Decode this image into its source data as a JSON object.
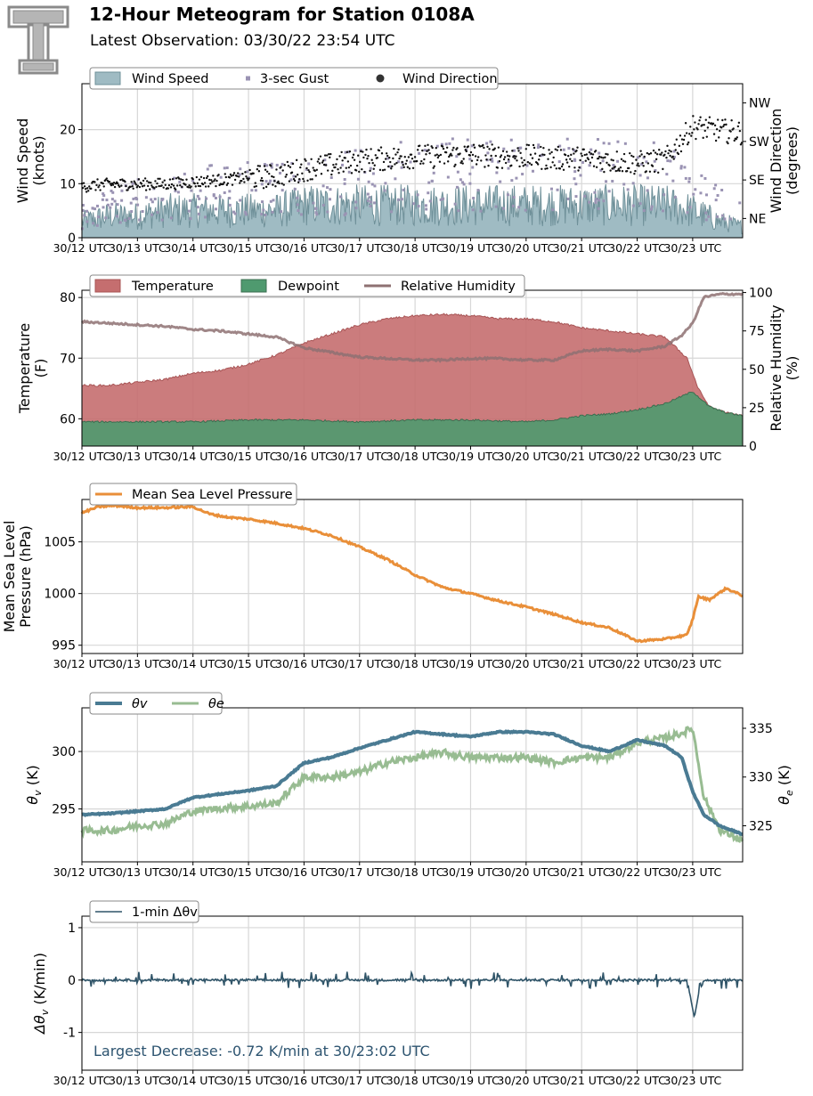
{
  "header": {
    "title": "12-Hour Meteogram for Station 0108A",
    "subtitle": "Latest Observation: 03/30/22 23:54 UTC"
  },
  "colors": {
    "wind_speed": "#9fbbc3",
    "wind_speed_line": "#6f9099",
    "gust": "#9a93b3",
    "wind_direction": "#111111",
    "temperature": "#c56e6f",
    "dewpoint": "#4f9a6f",
    "relative_humidity": "#8e7172",
    "pressure": "#e98f39",
    "theta_v": "#4a7b93",
    "theta_e": "#98bc92",
    "delta_theta_v": "#2f5468",
    "annotation": "#2d5470"
  },
  "chart_data": [
    {
      "id": "wind",
      "type": "area",
      "ylabel": "Wind Speed\n(knots)",
      "y2label": "Wind Direction\n(degrees)",
      "ylim": [
        0,
        28.5
      ],
      "yticks": [
        0,
        10,
        20
      ],
      "y2ticks": [
        "NE",
        "SE",
        "SW",
        "NW"
      ],
      "y2tick_degrees": [
        45,
        135,
        225,
        315
      ],
      "y2lim": [
        0,
        360
      ],
      "x_ticks": [
        "30/12 UTC",
        "30/13 UTC",
        "30/14 UTC",
        "30/15 UTC",
        "30/16 UTC",
        "30/17 UTC",
        "30/18 UTC",
        "30/19 UTC",
        "30/20 UTC",
        "30/21 UTC",
        "30/22 UTC",
        "30/23 UTC"
      ],
      "xlim_hours": [
        12,
        23.9
      ],
      "grid": true,
      "legend": {
        "placement": "top-left",
        "entries": [
          "Wind Speed",
          "3-sec Gust",
          "Wind Direction"
        ]
      },
      "series": [
        {
          "name": "Wind Speed",
          "kind": "area",
          "axis": "left",
          "x": [
            12,
            12.5,
            13,
            13.5,
            14,
            14.5,
            15,
            15.5,
            16,
            16.5,
            17,
            17.5,
            18,
            18.5,
            19,
            19.5,
            20,
            20.5,
            21,
            21.5,
            22,
            22.5,
            23,
            23.5,
            23.9
          ],
          "values": [
            3,
            4,
            4,
            5,
            5,
            5,
            5,
            5,
            6,
            6,
            6,
            6,
            6,
            6,
            6,
            6,
            6,
            6,
            6,
            6,
            6,
            6,
            5,
            3,
            2
          ]
        },
        {
          "name": "3-sec Gust",
          "kind": "points",
          "axis": "left",
          "x": [
            12,
            12.5,
            13,
            13.5,
            14,
            14.5,
            15,
            15.5,
            16,
            16.5,
            17,
            17.5,
            18,
            18.5,
            19,
            19.5,
            20,
            20.5,
            21,
            21.5,
            22,
            22.5,
            23,
            23.5,
            23.9
          ],
          "values": [
            4,
            6,
            7,
            8,
            8,
            9,
            9,
            9,
            10,
            10,
            11,
            11,
            12,
            12,
            12,
            12,
            12,
            12,
            12,
            12,
            12,
            12,
            9,
            6,
            4
          ]
        },
        {
          "name": "Wind Direction",
          "kind": "points",
          "axis": "right",
          "x": [
            12,
            12.5,
            13,
            13.5,
            14,
            14.5,
            15,
            15.5,
            16,
            16.5,
            17,
            17.5,
            18,
            18.5,
            19,
            19.5,
            20,
            20.5,
            21,
            21.5,
            22,
            22.5,
            23,
            23.5,
            23.9
          ],
          "values": [
            120,
            125,
            125,
            125,
            130,
            135,
            140,
            145,
            160,
            170,
            180,
            185,
            190,
            190,
            195,
            190,
            190,
            185,
            185,
            180,
            175,
            180,
            260,
            250,
            245
          ]
        }
      ]
    },
    {
      "id": "temperature",
      "type": "area",
      "ylabel": "Temperature\n(F)",
      "y2label": "Relative Humidity\n(%)",
      "ylim": [
        55.5,
        81.2
      ],
      "yticks": [
        60,
        70,
        80
      ],
      "y2lim": [
        0,
        101.5
      ],
      "y2ticks": [
        0,
        25,
        50,
        75,
        100
      ],
      "x_ticks": [
        "30/12 UTC",
        "30/13 UTC",
        "30/14 UTC",
        "30/15 UTC",
        "30/16 UTC",
        "30/17 UTC",
        "30/18 UTC",
        "30/19 UTC",
        "30/20 UTC",
        "30/21 UTC",
        "30/22 UTC",
        "30/23 UTC"
      ],
      "xlim_hours": [
        12,
        23.9
      ],
      "grid": true,
      "legend": {
        "placement": "top-left",
        "entries": [
          "Temperature",
          "Dewpoint",
          "Relative Humidity"
        ]
      },
      "series": [
        {
          "name": "Temperature",
          "kind": "area",
          "axis": "left",
          "x": [
            12,
            12.5,
            13,
            13.5,
            14,
            14.5,
            15,
            15.5,
            16,
            16.5,
            17,
            17.5,
            18,
            18.5,
            19,
            19.5,
            20,
            20.5,
            21,
            21.5,
            22,
            22.5,
            22.9,
            23.1,
            23.3,
            23.6,
            23.9
          ],
          "values": [
            65.5,
            65.5,
            66,
            66.5,
            67.5,
            68,
            69,
            70.5,
            72.5,
            74,
            75.5,
            76.5,
            77,
            77.2,
            77,
            76.5,
            76.5,
            76,
            75,
            74.5,
            74,
            73.5,
            70,
            65,
            62,
            61,
            60.5
          ]
        },
        {
          "name": "Dewpoint",
          "kind": "area",
          "axis": "left",
          "x": [
            12,
            13,
            14,
            15,
            16,
            17,
            18,
            19,
            20,
            20.5,
            21,
            21.5,
            22,
            22.5,
            23,
            23.3,
            23.6,
            23.9
          ],
          "values": [
            59.5,
            59.5,
            59.5,
            59.8,
            59.8,
            59.5,
            59.8,
            59.8,
            59.5,
            59.8,
            60.5,
            60.8,
            61.5,
            62.5,
            64.5,
            62,
            61,
            60.5
          ]
        },
        {
          "name": "Relative Humidity",
          "kind": "line",
          "axis": "right",
          "x": [
            12,
            12.5,
            13,
            13.5,
            14,
            14.5,
            15,
            15.5,
            16,
            16.5,
            17,
            17.5,
            18,
            18.5,
            19,
            19.5,
            20,
            20.5,
            21,
            21.5,
            22,
            22.5,
            22.8,
            23,
            23.2,
            23.5,
            23.9
          ],
          "values": [
            81,
            80,
            79,
            78,
            76,
            75,
            73,
            71,
            64,
            61,
            58,
            57,
            56,
            56,
            57,
            57,
            56,
            56,
            62,
            63,
            62,
            65,
            72,
            80,
            97,
            99,
            99
          ]
        }
      ]
    },
    {
      "id": "pressure",
      "type": "line",
      "ylabel": "Mean Sea Level\nPressure (hPa)",
      "ylim": [
        994.2,
        1009.1
      ],
      "yticks": [
        995,
        1000,
        1005
      ],
      "x_ticks": [
        "30/12 UTC",
        "30/13 UTC",
        "30/14 UTC",
        "30/15 UTC",
        "30/16 UTC",
        "30/17 UTC",
        "30/18 UTC",
        "30/19 UTC",
        "30/20 UTC",
        "30/21 UTC",
        "30/22 UTC",
        "30/23 UTC"
      ],
      "xlim_hours": [
        12,
        23.9
      ],
      "grid": true,
      "legend": {
        "placement": "top-left",
        "entries": [
          "Mean Sea Level Pressure"
        ]
      },
      "series": [
        {
          "name": "Mean Sea Level Pressure",
          "x": [
            12,
            12.3,
            12.6,
            13,
            13.5,
            14,
            14.3,
            14.6,
            15,
            15.5,
            16,
            16.5,
            17,
            17.5,
            18,
            18.5,
            19,
            19.5,
            20,
            20.5,
            21,
            21.5,
            22,
            22.5,
            22.9,
            23,
            23.1,
            23.3,
            23.6,
            23.9
          ],
          "values": [
            1007.8,
            1008.4,
            1008.5,
            1008.3,
            1008.3,
            1008.4,
            1007.7,
            1007.4,
            1007.2,
            1006.8,
            1006.3,
            1005.6,
            1004.5,
            1003.3,
            1001.8,
            1000.6,
            1000.0,
            999.3,
            998.7,
            998.0,
            997.2,
            996.7,
            995.4,
            995.6,
            996.0,
            997.5,
            999.7,
            999.4,
            1000.5,
            999.8
          ]
        }
      ]
    },
    {
      "id": "theta",
      "type": "line",
      "ylabel": "θv (K)",
      "y2label": "θe (K)",
      "ylim": [
        290.4,
        303.8
      ],
      "yticks": [
        295,
        300
      ],
      "y2lim": [
        321.3,
        337.1
      ],
      "y2ticks": [
        325,
        330,
        335
      ],
      "x_ticks": [
        "30/12 UTC",
        "30/13 UTC",
        "30/14 UTC",
        "30/15 UTC",
        "30/16 UTC",
        "30/17 UTC",
        "30/18 UTC",
        "30/19 UTC",
        "30/20 UTC",
        "30/21 UTC",
        "30/22 UTC",
        "30/23 UTC"
      ],
      "xlim_hours": [
        12,
        23.9
      ],
      "grid": true,
      "legend": {
        "placement": "top-left",
        "entries": [
          "θv",
          "θe"
        ]
      },
      "series": [
        {
          "name": "θv",
          "axis": "left",
          "x": [
            12,
            12.5,
            13,
            13.5,
            14,
            14.5,
            15,
            15.5,
            16,
            16.5,
            17,
            17.5,
            18,
            18.5,
            19,
            19.5,
            20,
            20.5,
            21,
            21.5,
            22,
            22.5,
            22.8,
            23,
            23.2,
            23.5,
            23.9
          ],
          "values": [
            294.5,
            294.6,
            294.8,
            295.0,
            296.0,
            296.3,
            296.6,
            297.0,
            299.0,
            299.5,
            300.3,
            301.0,
            301.7,
            301.5,
            301.3,
            301.7,
            301.7,
            301.5,
            300.5,
            300.0,
            301.0,
            300.5,
            299.5,
            296.5,
            294.5,
            293.5,
            292.8
          ]
        },
        {
          "name": "θe",
          "axis": "right",
          "x": [
            12,
            12.5,
            13,
            13.5,
            14,
            14.5,
            15,
            15.5,
            16,
            16.5,
            17,
            17.5,
            18,
            18.5,
            19,
            19.5,
            20,
            20.5,
            21,
            21.5,
            22,
            22.5,
            22.8,
            23,
            23.2,
            23.5,
            23.9
          ],
          "values": [
            324.5,
            324.5,
            325.0,
            325.2,
            326.5,
            326.8,
            327.0,
            327.3,
            330.0,
            330.0,
            330.5,
            331.5,
            332.0,
            332.5,
            332.0,
            332.0,
            332.0,
            331.5,
            332.0,
            332.0,
            333.5,
            334.0,
            334.5,
            335.0,
            328.0,
            324.5,
            323.5
          ]
        }
      ]
    },
    {
      "id": "delta",
      "type": "line",
      "ylabel": "Δθv (K/min)",
      "ylim": [
        -1.72,
        1.22
      ],
      "yticks": [
        -1,
        0,
        1
      ],
      "x_ticks": [
        "30/12 UTC",
        "30/13 UTC",
        "30/14 UTC",
        "30/15 UTC",
        "30/16 UTC",
        "30/17 UTC",
        "30/18 UTC",
        "30/19 UTC",
        "30/20 UTC",
        "30/21 UTC",
        "30/22 UTC",
        "30/23 UTC"
      ],
      "xlim_hours": [
        12,
        23.9
      ],
      "grid": true,
      "legend": {
        "placement": "top-left",
        "entries": [
          "1-min Δθv"
        ]
      },
      "annotation": "Largest Decrease: -0.72 K/min at 30/23:02 UTC",
      "series": [
        {
          "name": "1-min Δθv",
          "x": [
            12,
            14,
            16,
            18,
            20,
            21,
            22,
            22.9,
            23.03,
            23.1,
            23.2,
            23.5,
            23.9
          ],
          "values": [
            0,
            0,
            0,
            0,
            0,
            0,
            0,
            0,
            -0.72,
            -0.3,
            0,
            0,
            0
          ]
        }
      ]
    }
  ]
}
